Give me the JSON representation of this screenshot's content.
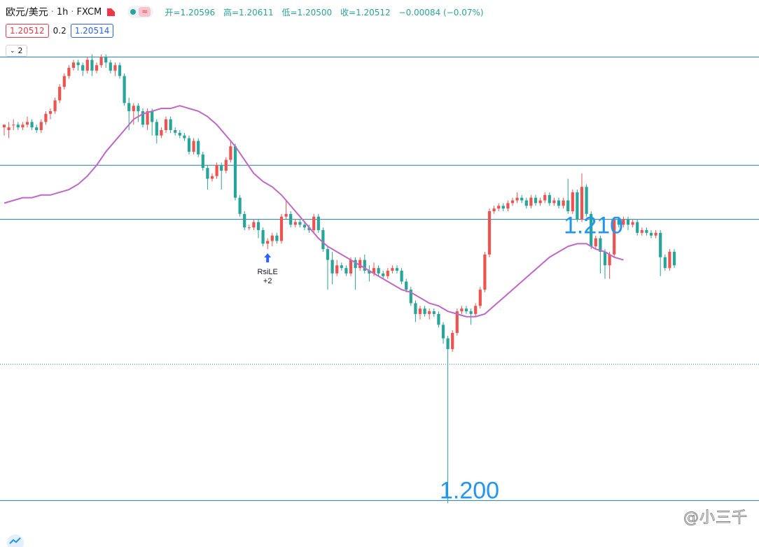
{
  "header": {
    "symbol": "欧元/美元",
    "interval": "1h",
    "exchange": "FXCM",
    "open_label": "开=1.20596",
    "high_label": "高=1.20611",
    "low_label": "低=1.20500",
    "close_label": "收=1.20512",
    "change_label": "−0.00084 (−0.07%)"
  },
  "quote": {
    "sell": "1.20512",
    "spread": "0.2",
    "buy": "1.20514"
  },
  "indicator_toggle": {
    "count": "2"
  },
  "watermark": "@小三千",
  "colors": {
    "up": "#ef5350",
    "down": "#26a69a",
    "ma": "#c266c8",
    "level": "#1e7fb8",
    "label": "#2196f3"
  },
  "chart_data": {
    "type": "candlestick",
    "title": "",
    "ylim": [
      1.1996,
      1.2168
    ],
    "price_levels": [
      1.2165,
      1.2125,
      1.2105,
      1.2001
    ],
    "level_labels": [
      {
        "text": "1.210",
        "price": 1.2105
      },
      {
        "text": "1.200",
        "price": 1.2001
      }
    ],
    "current_price": 1.20514,
    "annotation": {
      "text": "RsiLE",
      "value": "+2",
      "bar": 57
    },
    "candles": [
      [
        1.2139,
        1.214,
        1.2137,
        1.2136
      ],
      [
        1.2138,
        1.2139,
        1.2141,
        1.2135
      ],
      [
        1.214,
        1.214,
        1.2142,
        1.2138
      ],
      [
        1.214,
        1.2139,
        1.2141,
        1.2138
      ],
      [
        1.2139,
        1.214,
        1.2141,
        1.2138
      ],
      [
        1.214,
        1.2141,
        1.2143,
        1.2139
      ],
      [
        1.2141,
        1.2139,
        1.2142,
        1.2138
      ],
      [
        1.2139,
        1.2138,
        1.214,
        1.2137
      ],
      [
        1.2138,
        1.2141,
        1.2142,
        1.2137
      ],
      [
        1.2141,
        1.2144,
        1.2145,
        1.214
      ],
      [
        1.2144,
        1.2145,
        1.2146,
        1.2142
      ],
      [
        1.2145,
        1.2149,
        1.215,
        1.2144
      ],
      [
        1.2149,
        1.2154,
        1.2155,
        1.2148
      ],
      [
        1.2154,
        1.2158,
        1.2159,
        1.2153
      ],
      [
        1.2158,
        1.2161,
        1.2162,
        1.2157
      ],
      [
        1.2161,
        1.2163,
        1.2164,
        1.216
      ],
      [
        1.2163,
        1.2162,
        1.2164,
        1.216
      ],
      [
        1.2162,
        1.216,
        1.2163,
        1.2158
      ],
      [
        1.216,
        1.2164,
        1.2165,
        1.2159
      ],
      [
        1.2164,
        1.216,
        1.2166,
        1.2158
      ],
      [
        1.216,
        1.2162,
        1.2163,
        1.2159
      ],
      [
        1.2162,
        1.2165,
        1.2166,
        1.2161
      ],
      [
        1.2165,
        1.2163,
        1.2166,
        1.2161
      ],
      [
        1.2163,
        1.216,
        1.2164,
        1.2159
      ],
      [
        1.216,
        1.2162,
        1.2163,
        1.2158
      ],
      [
        1.2162,
        1.2158,
        1.2163,
        1.2157
      ],
      [
        1.2158,
        1.2148,
        1.2159,
        1.2147
      ],
      [
        1.2148,
        1.2145,
        1.215,
        1.2138
      ],
      [
        1.2145,
        1.2147,
        1.2148,
        1.214
      ],
      [
        1.2147,
        1.2145,
        1.2148,
        1.2141
      ],
      [
        1.2145,
        1.214,
        1.2146,
        1.2139
      ],
      [
        1.214,
        1.2145,
        1.2146,
        1.2138
      ],
      [
        1.2145,
        1.2141,
        1.2146,
        1.2136
      ],
      [
        1.2141,
        1.2136,
        1.2142,
        1.2133
      ],
      [
        1.2136,
        1.2138,
        1.2139,
        1.2135
      ],
      [
        1.2138,
        1.2142,
        1.2143,
        1.2137
      ],
      [
        1.2142,
        1.2138,
        1.2143,
        1.2137
      ],
      [
        1.2138,
        1.2137,
        1.2139,
        1.2136
      ],
      [
        1.2137,
        1.2136,
        1.2138,
        1.2135
      ],
      [
        1.2136,
        1.2135,
        1.2137,
        1.2134
      ],
      [
        1.2135,
        1.213,
        1.2136,
        1.2129
      ],
      [
        1.213,
        1.2134,
        1.2135,
        1.2129
      ],
      [
        1.2134,
        1.2129,
        1.2135,
        1.2128
      ],
      [
        1.2129,
        1.2124,
        1.213,
        1.2123
      ],
      [
        1.2124,
        1.212,
        1.2125,
        1.2116
      ],
      [
        1.212,
        1.2121,
        1.2122,
        1.2119
      ],
      [
        1.2121,
        1.2125,
        1.2126,
        1.212
      ],
      [
        1.2125,
        1.2123,
        1.2126,
        1.2116
      ],
      [
        1.2123,
        1.2127,
        1.2128,
        1.2122
      ],
      [
        1.2127,
        1.2132,
        1.2134,
        1.2126
      ],
      [
        1.2132,
        1.2113,
        1.2133,
        1.2112
      ],
      [
        1.2113,
        1.2107,
        1.2114,
        1.2106
      ],
      [
        1.2107,
        1.2102,
        1.2108,
        1.2101
      ],
      [
        1.2102,
        1.2102,
        1.2103,
        1.2101
      ],
      [
        1.2102,
        1.2104,
        1.2105,
        1.2101
      ],
      [
        1.2104,
        1.2101,
        1.2105,
        1.2098
      ],
      [
        1.2101,
        1.2096,
        1.2102,
        1.2095
      ],
      [
        1.2096,
        1.2097,
        1.2098,
        1.2094
      ],
      [
        1.2097,
        1.2099,
        1.21,
        1.2095
      ],
      [
        1.2099,
        1.2097,
        1.21,
        1.2096
      ],
      [
        1.2097,
        1.2106,
        1.2107,
        1.2096
      ],
      [
        1.2106,
        1.2107,
        1.2112,
        1.2105
      ],
      [
        1.2107,
        1.2103,
        1.2108,
        1.2102
      ],
      [
        1.2103,
        1.2104,
        1.2105,
        1.2102
      ],
      [
        1.2104,
        1.2103,
        1.2105,
        1.2102
      ],
      [
        1.2103,
        1.2102,
        1.2104,
        1.2101
      ],
      [
        1.2102,
        1.2101,
        1.2103,
        1.21
      ],
      [
        1.2101,
        1.2106,
        1.2107,
        1.21
      ],
      [
        1.2106,
        1.2101,
        1.2107,
        1.21
      ],
      [
        1.2101,
        1.2094,
        1.2102,
        1.2093
      ],
      [
        1.2094,
        1.209,
        1.2095,
        1.2079
      ],
      [
        1.209,
        1.2085,
        1.2093,
        1.2081
      ],
      [
        1.2085,
        1.2088,
        1.209,
        1.2084
      ],
      [
        1.2088,
        1.2087,
        1.2089,
        1.2086
      ],
      [
        1.2087,
        1.2085,
        1.2088,
        1.2084
      ],
      [
        1.2085,
        1.209,
        1.2091,
        1.2084
      ],
      [
        1.209,
        1.2087,
        1.2091,
        1.2079
      ],
      [
        1.2087,
        1.209,
        1.2091,
        1.2086
      ],
      [
        1.209,
        1.2086,
        1.2092,
        1.2085
      ],
      [
        1.2086,
        1.2085,
        1.2088,
        1.2082
      ],
      [
        1.2085,
        1.2087,
        1.2089,
        1.2084
      ],
      [
        1.2087,
        1.2085,
        1.2088,
        1.2084
      ],
      [
        1.2085,
        1.2084,
        1.2086,
        1.2083
      ],
      [
        1.2084,
        1.2086,
        1.2087,
        1.2083
      ],
      [
        1.2086,
        1.2087,
        1.2088,
        1.2085
      ],
      [
        1.2087,
        1.2086,
        1.2088,
        1.2085
      ],
      [
        1.2086,
        1.2082,
        1.2087,
        1.2081
      ],
      [
        1.2082,
        1.2079,
        1.2083,
        1.2078
      ],
      [
        1.2079,
        1.2074,
        1.208,
        1.2073
      ],
      [
        1.2074,
        1.207,
        1.2075,
        1.2067
      ],
      [
        1.207,
        1.2072,
        1.2073,
        1.2068
      ],
      [
        1.2072,
        1.207,
        1.2073,
        1.2069
      ],
      [
        1.207,
        1.2071,
        1.2072,
        1.2068
      ],
      [
        1.2071,
        1.207,
        1.2072,
        1.2069
      ],
      [
        1.207,
        1.2066,
        1.2071,
        1.2065
      ],
      [
        1.2066,
        1.2061,
        1.2067,
        1.2059
      ],
      [
        1.2061,
        1.2057,
        1.2062,
        1.2
      ],
      [
        1.2057,
        1.2063,
        1.2064,
        1.2056
      ],
      [
        1.2063,
        1.2071,
        1.2072,
        1.2062
      ],
      [
        1.2071,
        1.2072,
        1.2073,
        1.207
      ],
      [
        1.2072,
        1.2071,
        1.2073,
        1.207
      ],
      [
        1.2071,
        1.207,
        1.2072,
        1.2066
      ],
      [
        1.207,
        1.2073,
        1.2074,
        1.2069
      ],
      [
        1.2073,
        1.2079,
        1.208,
        1.2072
      ],
      [
        1.2079,
        1.2092,
        1.2093,
        1.2078
      ],
      [
        1.2092,
        1.2108,
        1.2109,
        1.2091
      ],
      [
        1.2108,
        1.2109,
        1.211,
        1.2107
      ],
      [
        1.2109,
        1.211,
        1.2111,
        1.2108
      ],
      [
        1.211,
        1.2109,
        1.2111,
        1.2108
      ],
      [
        1.2109,
        1.2111,
        1.2112,
        1.2108
      ],
      [
        1.2111,
        1.2112,
        1.2113,
        1.211
      ],
      [
        1.2112,
        1.2113,
        1.2115,
        1.2111
      ],
      [
        1.2113,
        1.2112,
        1.2114,
        1.2111
      ],
      [
        1.2112,
        1.211,
        1.2113,
        1.2109
      ],
      [
        1.211,
        1.2113,
        1.2114,
        1.2109
      ],
      [
        1.2113,
        1.2111,
        1.2114,
        1.211
      ],
      [
        1.2111,
        1.2112,
        1.2113,
        1.211
      ],
      [
        1.2112,
        1.2114,
        1.2115,
        1.2111
      ],
      [
        1.2114,
        1.2111,
        1.2115,
        1.211
      ],
      [
        1.2111,
        1.2112,
        1.2113,
        1.211
      ],
      [
        1.2112,
        1.211,
        1.2113,
        1.2109
      ],
      [
        1.211,
        1.2112,
        1.2113,
        1.2109
      ],
      [
        1.2112,
        1.2108,
        1.212,
        1.2107
      ],
      [
        1.2108,
        1.2115,
        1.2116,
        1.2107
      ],
      [
        1.2115,
        1.2105,
        1.2116,
        1.2104
      ],
      [
        1.2105,
        1.2117,
        1.2122,
        1.2104
      ],
      [
        1.2117,
        1.2107,
        1.2118,
        1.2106
      ],
      [
        1.2107,
        1.2095,
        1.2108,
        1.2094
      ],
      [
        1.2095,
        1.2098,
        1.2099,
        1.2094
      ],
      [
        1.2098,
        1.2093,
        1.2099,
        1.2085
      ],
      [
        1.2093,
        1.2088,
        1.2094,
        1.2083
      ],
      [
        1.2088,
        1.2092,
        1.2093,
        1.2083
      ],
      [
        1.2092,
        1.2105,
        1.2106,
        1.2091
      ],
      [
        1.2105,
        1.2103,
        1.2106,
        1.2102
      ],
      [
        1.2103,
        1.2105,
        1.2106,
        1.2102
      ],
      [
        1.2105,
        1.2103,
        1.2106,
        1.2101
      ],
      [
        1.2103,
        1.2104,
        1.2105,
        1.2102
      ],
      [
        1.2104,
        1.21,
        1.2105,
        1.2099
      ],
      [
        1.21,
        1.2101,
        1.2102,
        1.2099
      ],
      [
        1.2101,
        1.21,
        1.2102,
        1.2099
      ],
      [
        1.21,
        1.2099,
        1.2101,
        1.2098
      ],
      [
        1.2099,
        1.21,
        1.2101,
        1.2098
      ],
      [
        1.21,
        1.2091,
        1.2101,
        1.2084
      ],
      [
        1.2091,
        1.2087,
        1.2092,
        1.2086
      ],
      [
        1.2087,
        1.2093,
        1.2094,
        1.2086
      ],
      [
        1.2093,
        1.2088,
        1.2094,
        1.2087
      ]
    ],
    "ma": [
      1.2111,
      1.2112,
      1.2113,
      1.2113,
      1.2114,
      1.2114,
      1.2115,
      1.2116,
      1.2118,
      1.2121,
      1.2125,
      1.213,
      1.2134,
      1.2138,
      1.2142,
      1.2144,
      1.2145,
      1.2146,
      1.2146,
      1.2147,
      1.2146,
      1.2145,
      1.2143,
      1.214,
      1.2136,
      1.2132,
      1.2127,
      1.2122,
      1.2119,
      1.2117,
      1.2114,
      1.211,
      1.2106,
      1.2102,
      1.2098,
      1.2095,
      1.2093,
      1.2091,
      1.2089,
      1.2087,
      1.2085,
      1.2083,
      1.2081,
      1.2079,
      1.2078,
      1.2076,
      1.2074,
      1.2073,
      1.2071,
      1.207,
      1.2069,
      1.2069,
      1.207,
      1.2073,
      1.2076,
      1.2079,
      1.2082,
      1.2085,
      1.2088,
      1.2091,
      1.2093,
      1.2095,
      1.2096,
      1.2096,
      1.2094,
      1.2093,
      1.2091,
      1.209
    ],
    "ma_x_step": 13
  }
}
